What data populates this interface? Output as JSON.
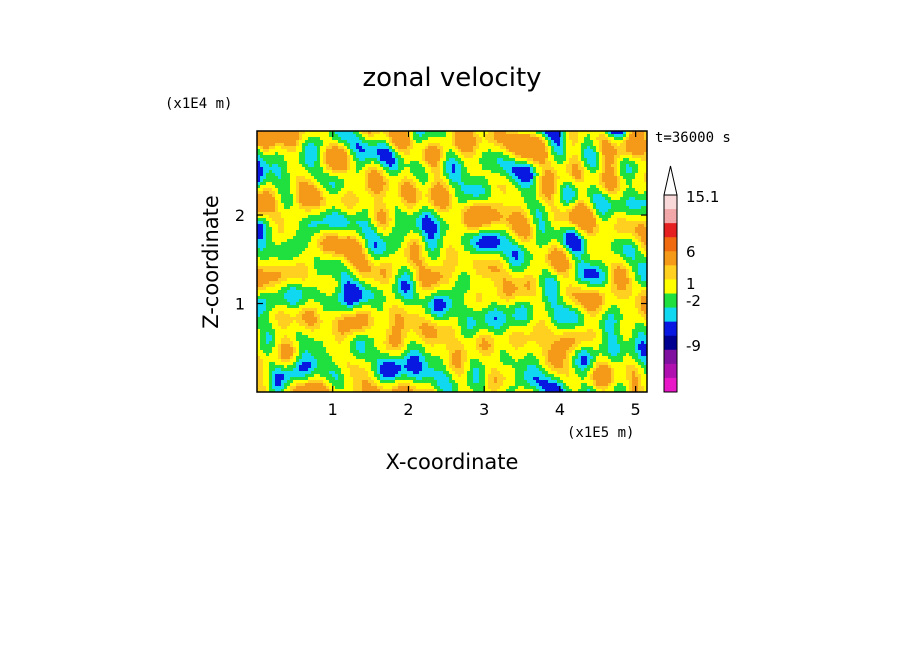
{
  "chart_data": {
    "type": "heatmap",
    "title": "zonal velocity",
    "xlabel": "X-coordinate",
    "ylabel": "Z-coordinate",
    "x_scale_label": "(x1E5 m)",
    "y_scale_label": "(x1E4 m)",
    "time_label": "t=36000 s",
    "xlim": [
      0,
      5.15
    ],
    "ylim": [
      0,
      2.95
    ],
    "x_ticks": [
      "1",
      "2",
      "3",
      "4",
      "5"
    ],
    "y_ticks": [
      "1",
      "2"
    ],
    "colorbar": {
      "levels_top_to_bottom": [
        "#f8d8d8",
        "#f2a8a8",
        "#e42020",
        "#f06a10",
        "#f59a18",
        "#ffd020",
        "#ffff00",
        "#20e040",
        "#10d8f0",
        "#0818e0",
        "#000090",
        "#8010a0",
        "#b010b0",
        "#e818c8"
      ],
      "labels": [
        "15.1",
        "6",
        "1",
        "-2",
        "-9"
      ]
    },
    "palette": {
      "blue": "#0818e0",
      "cyan": "#10d8f0",
      "green": "#20e040",
      "yellow": "#ffff00",
      "gold": "#ffd020",
      "orange": "#f59a18"
    }
  }
}
